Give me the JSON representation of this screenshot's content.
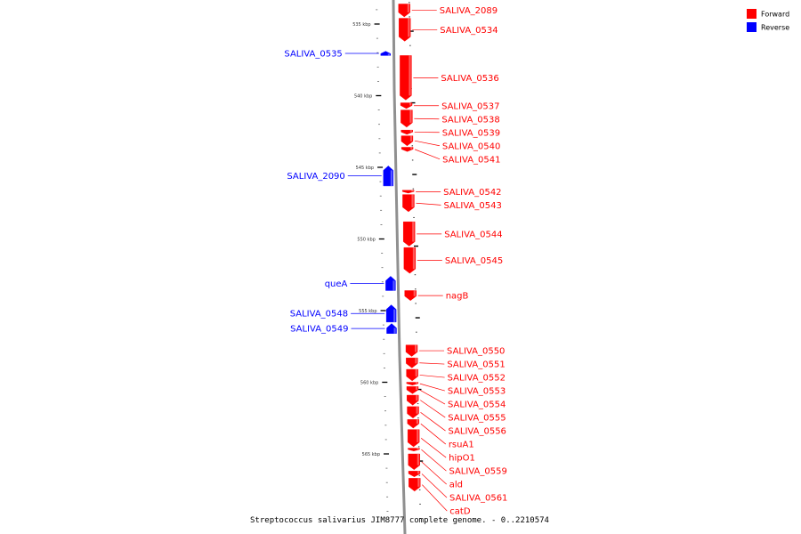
{
  "caption": "Streptococcus salivarius JIM8777 complete genome. - 0..2210574",
  "legend": [
    {
      "label": "Forward",
      "color": "#ff0000"
    },
    {
      "label": "Reverse",
      "color": "#0000ff"
    }
  ],
  "ticks": [
    {
      "label": "535 kbp",
      "kbp": 535
    },
    {
      "label": "540 kbp",
      "kbp": 540
    },
    {
      "label": "545 kbp",
      "kbp": 545
    },
    {
      "label": "550 kbp",
      "kbp": 550
    },
    {
      "label": "555 kbp",
      "kbp": 555
    },
    {
      "label": "560 kbp",
      "kbp": 560
    },
    {
      "label": "565 kbp",
      "kbp": 565
    }
  ],
  "genes": [
    {
      "name": "SALIVA_2089",
      "strand": "forward",
      "start_kbp": 533.6,
      "end_kbp": 534.5
    },
    {
      "name": "SALIVA_0534",
      "strand": "forward",
      "start_kbp": 534.6,
      "end_kbp": 536.2
    },
    {
      "name": "SALIVA_0535",
      "strand": "reverse",
      "start_kbp": 536.9,
      "end_kbp": 537.2
    },
    {
      "name": "SALIVA_0536",
      "strand": "forward",
      "start_kbp": 537.2,
      "end_kbp": 540.3
    },
    {
      "name": "SALIVA_0537",
      "strand": "forward",
      "start_kbp": 540.5,
      "end_kbp": 540.9
    },
    {
      "name": "SALIVA_0538",
      "strand": "forward",
      "start_kbp": 541.0,
      "end_kbp": 542.2
    },
    {
      "name": "SALIVA_0539",
      "strand": "forward",
      "start_kbp": 542.4,
      "end_kbp": 542.7
    },
    {
      "name": "SALIVA_0540",
      "strand": "forward",
      "start_kbp": 542.8,
      "end_kbp": 543.5
    },
    {
      "name": "SALIVA_0541",
      "strand": "forward",
      "start_kbp": 543.6,
      "end_kbp": 543.9
    },
    {
      "name": "SALIVA_2090",
      "strand": "reverse",
      "start_kbp": 544.9,
      "end_kbp": 546.3
    },
    {
      "name": "SALIVA_0542",
      "strand": "forward",
      "start_kbp": 546.6,
      "end_kbp": 546.8
    },
    {
      "name": "SALIVA_0543",
      "strand": "forward",
      "start_kbp": 546.9,
      "end_kbp": 548.1
    },
    {
      "name": "SALIVA_0544",
      "strand": "forward",
      "start_kbp": 548.8,
      "end_kbp": 550.5
    },
    {
      "name": "SALIVA_0545",
      "strand": "forward",
      "start_kbp": 550.6,
      "end_kbp": 552.4
    },
    {
      "name": "queA",
      "strand": "reverse",
      "start_kbp": 552.6,
      "end_kbp": 553.6
    },
    {
      "name": "nagB",
      "strand": "forward",
      "start_kbp": 553.6,
      "end_kbp": 554.3
    },
    {
      "name": "SALIVA_0548",
      "strand": "reverse",
      "start_kbp": 554.6,
      "end_kbp": 555.8
    },
    {
      "name": "SALIVA_0549",
      "strand": "reverse",
      "start_kbp": 555.9,
      "end_kbp": 556.6
    },
    {
      "name": "SALIVA_0550",
      "strand": "forward",
      "start_kbp": 557.4,
      "end_kbp": 558.2
    },
    {
      "name": "SALIVA_0551",
      "strand": "forward",
      "start_kbp": 558.3,
      "end_kbp": 559.0
    },
    {
      "name": "SALIVA_0552",
      "strand": "forward",
      "start_kbp": 559.1,
      "end_kbp": 559.9
    },
    {
      "name": "SALIVA_0553",
      "strand": "forward",
      "start_kbp": 560.0,
      "end_kbp": 560.2
    },
    {
      "name": "SALIVA_0554",
      "strand": "forward",
      "start_kbp": 560.3,
      "end_kbp": 560.8
    },
    {
      "name": "SALIVA_0555",
      "strand": "forward",
      "start_kbp": 560.9,
      "end_kbp": 561.6
    },
    {
      "name": "SALIVA_0556",
      "strand": "forward",
      "start_kbp": 561.7,
      "end_kbp": 562.5
    },
    {
      "name": "rsuA1",
      "strand": "forward",
      "start_kbp": 562.6,
      "end_kbp": 563.2
    },
    {
      "name": "hipO1",
      "strand": "forward",
      "start_kbp": 563.3,
      "end_kbp": 564.5
    },
    {
      "name": "SALIVA_0559",
      "strand": "forward",
      "start_kbp": 564.6,
      "end_kbp": 564.8
    },
    {
      "name": "ald",
      "strand": "forward",
      "start_kbp": 565.0,
      "end_kbp": 566.1
    },
    {
      "name": "SALIVA_0561",
      "strand": "forward",
      "start_kbp": 566.2,
      "end_kbp": 566.6
    },
    {
      "name": "catD",
      "strand": "forward",
      "start_kbp": 566.7,
      "end_kbp": 567.6
    }
  ]
}
